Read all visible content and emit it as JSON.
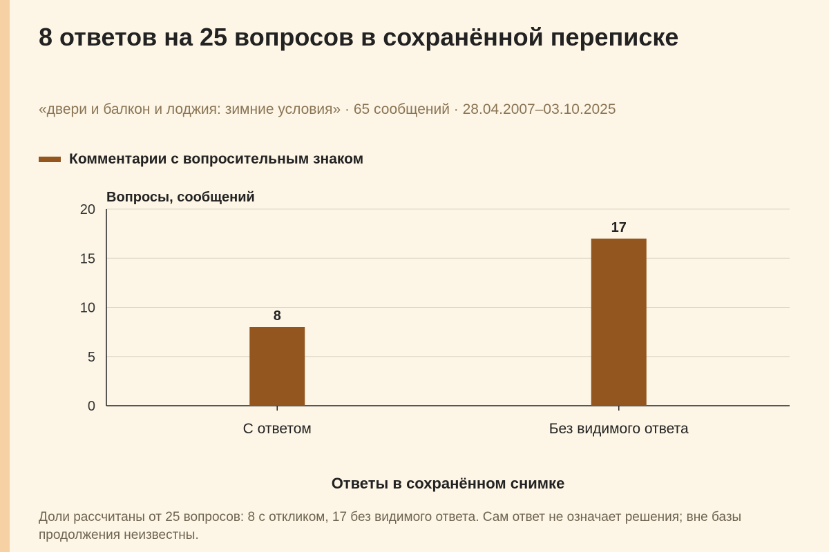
{
  "title": "8 ответов на 25 вопросов в сохранённой переписке",
  "subtitle": "«двери и балкон и лоджия: зимние условия» · 65 сообщений · 28.04.2007–03.10.2025",
  "footnote": "Доли рассчитаны от 25 вопросов: 8 с откликом, 17 без видимого ответа. Сам ответ не означает решения; вне базы продолжения неизвестны.",
  "colors": {
    "bar": "#93561e",
    "background": "#fdf6e6",
    "accent_stripe": "#f6d1a3"
  },
  "chart_data": {
    "type": "bar",
    "title": "8 ответов на 25 вопросов в сохранённой переписке",
    "xlabel": "Ответы в сохранённом снимке",
    "ylabel": "Вопросы, сообщений",
    "categories": [
      "С ответом",
      "Без видимого ответа"
    ],
    "series": [
      {
        "name": "Комментарии с вопросительным знаком",
        "values": [
          8,
          17
        ]
      }
    ],
    "ylim": [
      0,
      20
    ],
    "yticks": [
      0,
      5,
      10,
      15,
      20
    ],
    "data_labels": [
      "8",
      "17"
    ],
    "grid": true,
    "legend": "top-left"
  }
}
